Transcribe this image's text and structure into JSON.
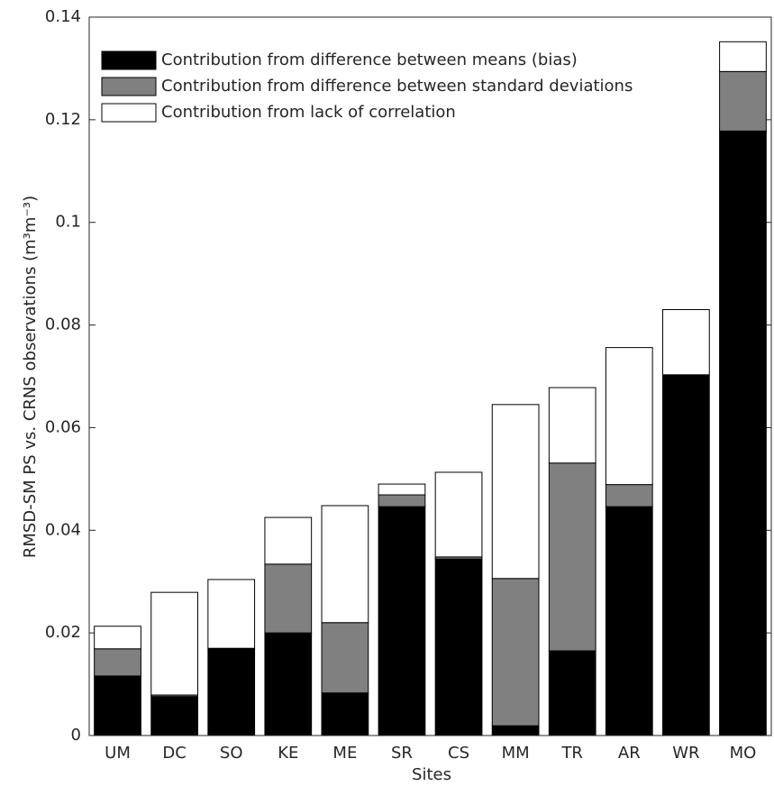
{
  "chart_data": {
    "type": "bar",
    "stacked": true,
    "x_label": "Sites",
    "y_label": "RMSD-SM PS vs. CRNS observations (m³m⁻³)",
    "categories": [
      "UM",
      "DC",
      "SO",
      "KE",
      "ME",
      "SR",
      "CS",
      "MM",
      "TR",
      "AR",
      "WR",
      "MO"
    ],
    "series": [
      {
        "name": "Contribution from difference between means (bias)",
        "color": "#000000",
        "values": [
          0.0116,
          0.0076,
          0.017,
          0.02,
          0.0083,
          0.0446,
          0.0344,
          0.0019,
          0.0165,
          0.0446,
          0.0703,
          0.1178
        ]
      },
      {
        "name": "Contribution from difference between standard deviations",
        "color": "#808080",
        "values": [
          0.0053,
          0.0003,
          0,
          0.0134,
          0.0137,
          0.0023,
          0.0004,
          0.0287,
          0.0366,
          0.0043,
          0,
          0.0116
        ]
      },
      {
        "name": "Contribution from lack of correlation",
        "color": "#ffffff",
        "values": [
          0.0044,
          0.02,
          0.0134,
          0.0091,
          0.0228,
          0.0021,
          0.0165,
          0.0339,
          0.0147,
          0.0267,
          0.0127,
          0.0058
        ]
      }
    ],
    "ylim": [
      0,
      0.14
    ],
    "yticks": [
      0,
      0.02,
      0.04,
      0.06,
      0.08,
      0.1,
      0.12,
      0.14
    ],
    "grid": false,
    "legend": "top-left"
  }
}
